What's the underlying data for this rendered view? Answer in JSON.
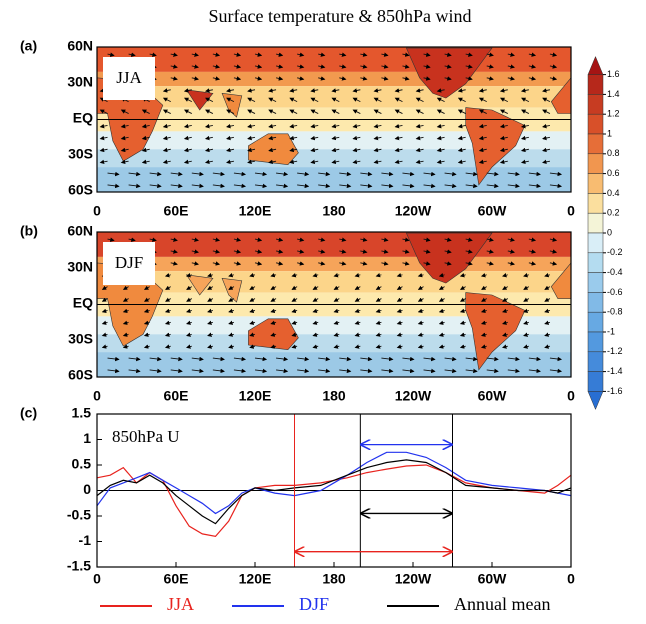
{
  "title": "Surface temperature & 850hPa wind",
  "maps": [
    {
      "panel": "(a)",
      "season": "JJA"
    },
    {
      "panel": "(b)",
      "season": "DJF"
    }
  ],
  "map_lat_labels": [
    "60N",
    "30N",
    "EQ",
    "30S",
    "60S"
  ],
  "map_lon_labels": [
    "0",
    "60E",
    "120E",
    "180",
    "120W",
    "60W",
    "0"
  ],
  "colorbar": {
    "ticks": [
      1.6,
      1.4,
      1.2,
      1,
      0.8,
      0.6,
      0.4,
      0.2,
      0,
      -0.2,
      -0.4,
      -0.6,
      -0.8,
      -1,
      -1.2,
      -1.4,
      -1.6
    ]
  },
  "chart_data": {
    "type": "line",
    "panel": "(c)",
    "annotation": "850hPa U",
    "x": [
      0,
      10,
      20,
      30,
      40,
      50,
      60,
      70,
      80,
      90,
      100,
      110,
      120,
      135,
      150,
      170,
      190,
      205,
      220,
      235,
      250,
      265,
      280,
      300,
      320,
      340,
      350,
      360
    ],
    "series": [
      {
        "name": "JJA",
        "color": "#e8231e",
        "values": [
          0.25,
          0.3,
          0.45,
          0.15,
          0.35,
          0.2,
          -0.3,
          -0.7,
          -0.85,
          -0.9,
          -0.6,
          -0.1,
          0.05,
          0.1,
          0.1,
          0.15,
          0.25,
          0.35,
          0.42,
          0.48,
          0.5,
          0.35,
          0.15,
          0.05,
          0.0,
          -0.05,
          0.1,
          0.3
        ]
      },
      {
        "name": "DJF",
        "color": "#2233ee",
        "values": [
          -0.3,
          0.05,
          0.15,
          0.25,
          0.35,
          0.2,
          0.05,
          -0.1,
          -0.25,
          -0.45,
          -0.3,
          -0.05,
          0.05,
          -0.05,
          -0.1,
          0.0,
          0.3,
          0.55,
          0.75,
          0.75,
          0.65,
          0.45,
          0.2,
          0.1,
          0.05,
          0.0,
          -0.05,
          -0.1
        ]
      },
      {
        "name": "Annual mean",
        "color": "#000000",
        "values": [
          -0.1,
          0.1,
          0.2,
          0.15,
          0.3,
          0.15,
          -0.1,
          -0.3,
          -0.5,
          -0.65,
          -0.35,
          -0.1,
          0.05,
          0.0,
          0.05,
          0.1,
          0.3,
          0.45,
          0.55,
          0.6,
          0.55,
          0.35,
          0.1,
          0.05,
          0.0,
          0.0,
          -0.05,
          0.05
        ]
      }
    ],
    "xlim": [
      0,
      360
    ],
    "xticks": [
      0,
      {
        "value": 60,
        "label": "60E"
      },
      {
        "value": 120,
        "label": "120E"
      },
      180,
      {
        "value": 240,
        "label": "120W"
      },
      {
        "value": 300,
        "label": "60W"
      },
      {
        "value": 360,
        "label": "0"
      }
    ],
    "ylim": [
      -1.5,
      1.5
    ],
    "yticks": [
      1.5,
      1,
      0.5,
      0,
      -0.5,
      -1,
      -1.5
    ],
    "vlines": [
      {
        "color": "#e8231e",
        "x": 150
      },
      {
        "color": "#000000",
        "x": 200
      },
      {
        "color": "#000000",
        "x": 270
      }
    ],
    "arrows": [
      {
        "color": "#2233ee",
        "x": [
          200,
          270
        ],
        "y": 0.9
      },
      {
        "color": "#000000",
        "x": [
          200,
          270
        ],
        "y": -0.45
      },
      {
        "color": "#e8231e",
        "x": [
          150,
          270
        ],
        "y": -1.2
      }
    ]
  }
}
